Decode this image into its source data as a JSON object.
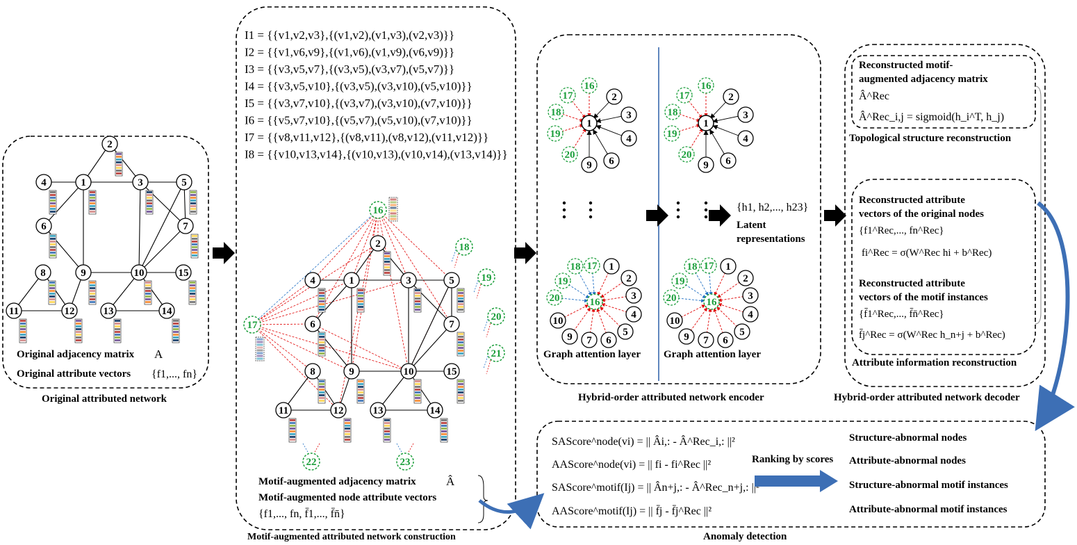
{
  "panels": {
    "original": {
      "title": "Original attributed network",
      "adj_label": "Original adjacency matrix",
      "adj_symbol": "A",
      "attr_label": "Original attribute vectors",
      "attr_symbol": "{f1,..., fn}"
    },
    "construction": {
      "title": "Motif-augmented attributed network construction",
      "motifs": [
        "I1 = {{v1,v2,v3},{(v1,v2),(v1,v3),(v2,v3)}}",
        "I2 = {{v1,v6,v9},{(v1,v6),(v1,v9),(v6,v9)}}",
        "I3 = {{v3,v5,v7},{(v3,v5),(v3,v7),(v5,v7)}}",
        "I4 = {{v3,v5,v10},{(v3,v5),(v3,v10),(v5,v10)}}",
        "I5 = {{v3,v7,v10},{(v3,v7),(v3,v10),(v7,v10)}}",
        "I6 = {{v5,v7,v10},{(v5,v7),(v5,v10),(v7,v10)}}",
        "I7 = {{v8,v11,v12},{(v8,v11),(v8,v12),(v11,v12)}}",
        "I8 = {{v10,v13,v14},{(v10,v13),(v10,v14),(v13,v14)}}"
      ],
      "adj_label": "Motif-augmented adjacency matrix",
      "adj_symbol": "Â",
      "attr_label": "Motif-augmented node attribute vectors",
      "attr_symbol": "{f1,..., fn, f̄1,..., f̄n̄}"
    },
    "encoder": {
      "title": "Hybrid-order attributed network encoder",
      "layer_label": "Graph attention layer",
      "latent_symbol": "{h1, h2,..., h23}",
      "latent_label": "Latent representations"
    },
    "decoder": {
      "title": "Hybrid-order attributed network decoder",
      "topo_title": "Reconstructed motif-augmented adjacency matrix",
      "topo_symbol": "Â^Rec",
      "topo_formula": "Â^Rec_i,j = sigmoid(h_i^T, h_j)",
      "topo_caption": "Topological structure reconstruction",
      "attr_title1": "Reconstructed attribute vectors of the original nodes",
      "attr_set1": "{f1^Rec,..., fn^Rec}",
      "attr_formula1": "fi^Rec = σ(W^Rec hi + b^Rec)",
      "attr_title2": "Reconstructed attribute vectors of the motif instances",
      "attr_set2": "{f̄1^Rec,..., f̄n̄^Rec}",
      "attr_formula2": "f̄j^Rec = σ(W^Rec h_n+j + b^Rec)",
      "attr_caption": "Attribute information reconstruction"
    },
    "anomaly": {
      "title": "Anomaly detection",
      "scores": [
        "SAScore^node(vi) = || Âi,: - Â^Rec_i,: ||²",
        "AAScore^node(vi) = || fi - fi^Rec ||²",
        "SAScore^motif(Ij) = || Ân+j,: - Â^Rec_n+j,: ||²",
        "AAScore^motif(Ij) = || f̄j - f̄j^Rec ||²"
      ],
      "ranking": "Ranking by scores",
      "outputs": [
        "Structure-abnormal nodes",
        "Attribute-abnormal nodes",
        "Structure-abnormal motif instances",
        "Attribute-abnormal motif instances"
      ]
    }
  },
  "node_labels": [
    "1",
    "2",
    "3",
    "4",
    "5",
    "6",
    "7",
    "8",
    "9",
    "10",
    "11",
    "12",
    "13",
    "14",
    "15"
  ],
  "motif_node_labels": [
    "16",
    "17",
    "18",
    "19",
    "20",
    "21",
    "22",
    "23"
  ],
  "encoder_star1": {
    "center": "1",
    "neighbors": [
      "16",
      "17",
      "18",
      "19",
      "20",
      "9",
      "6",
      "4",
      "3",
      "2"
    ]
  },
  "encoder_star2": {
    "center": "16",
    "neighbors": [
      "17",
      "18",
      "19",
      "20",
      "1",
      "2",
      "3",
      "4",
      "5",
      "6",
      "7",
      "9",
      "10"
    ]
  },
  "colors": {
    "motif": "#1a9e3a",
    "structure_edge": "#e00000",
    "attention_blue": "#1f6fc4",
    "arrow": "#3d6fb5"
  }
}
